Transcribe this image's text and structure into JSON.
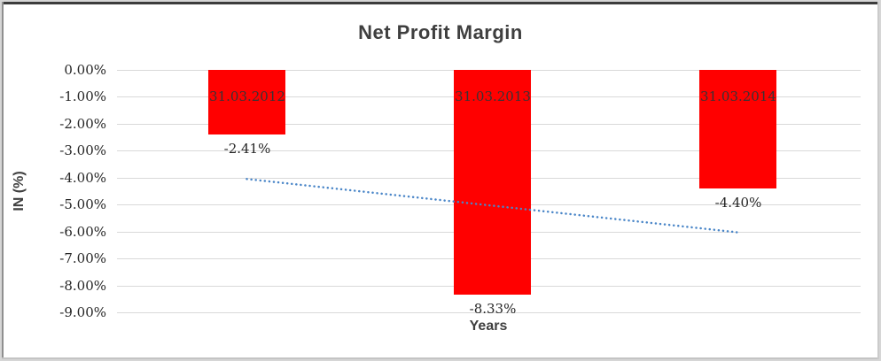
{
  "chart_data": {
    "type": "bar",
    "title": "Net Profit Margin",
    "xlabel": "Years",
    "ylabel": "IN (%)",
    "categories": [
      "31.03.2012",
      "31.03.2013",
      "31.03.2014"
    ],
    "values": [
      -2.41,
      -8.33,
      -4.4
    ],
    "value_labels": [
      "-2.41%",
      "-8.33%",
      "-4.40%"
    ],
    "category_label_position": "inside-bar-near-top",
    "value_label_position": "below-bar-end",
    "y_ticks": [
      "0.00%",
      "-1.00%",
      "-2.00%",
      "-3.00%",
      "-4.00%",
      "-5.00%",
      "-6.00%",
      "-7.00%",
      "-8.00%",
      "-9.00%"
    ],
    "ylim": [
      0,
      -9
    ],
    "grid": true,
    "legend": "none",
    "colors": {
      "bar": "#ff0000",
      "bar_label_text": "#3b3234",
      "axis_text": "#262626",
      "title_text": "#3f3f3f",
      "gridline": "#d9d9d9",
      "trendline": "#4a86c8"
    },
    "trendline": {
      "type": "linear",
      "style": "dotted",
      "start_value_pct": -4.05,
      "end_value_pct": -6.03
    }
  }
}
